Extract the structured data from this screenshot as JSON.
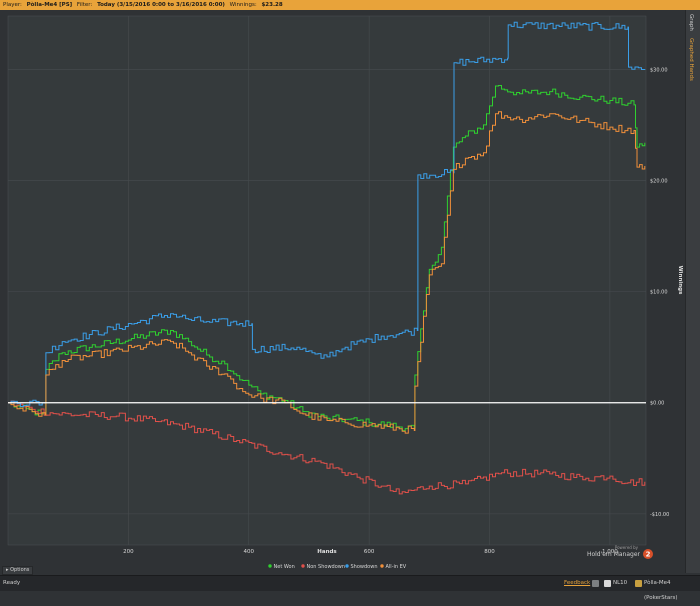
{
  "titlebar": {
    "player_label": "Player:",
    "player": "Pòlla-Me4 [PS]",
    "filter_label": "Filter:",
    "filter": "Today (3/15/2016 0:00 to 3/16/2016 0:00)",
    "winnings_label": "Winnings:",
    "winnings": "$23.28"
  },
  "sidebar": {
    "tab_graph": "Graph",
    "tab_graphed_hands": "Graphed Hands"
  },
  "options_label": "Options",
  "statusbar": {
    "ready": "Ready",
    "feedback": "Feedback",
    "stake": "NL10",
    "player_site": "Pòlla-Me4 (PokerStars)"
  },
  "brand": {
    "powered_by": "Powered by",
    "name": "Hold'em Manager",
    "badge": "2"
  },
  "colors": {
    "net_won": "#2fd02f",
    "non_showdown": "#e0504a",
    "showdown": "#3a9ee8",
    "allin_ev": "#f08f3a",
    "zero_line": "#ffffff",
    "accent": "#e8a33a"
  },
  "chart_data": {
    "type": "line",
    "xlabel": "Hands",
    "ylabel": "Winnings",
    "xlim": [
      0,
      1060
    ],
    "ylim": [
      -12.8,
      34.8
    ],
    "x_ticks": [
      200,
      400,
      600,
      800,
      1000
    ],
    "x_tick_labels": [
      "200",
      "400",
      "600",
      "800",
      "1,000"
    ],
    "y_ticks": [
      -10,
      0,
      10,
      20,
      30
    ],
    "y_tick_labels": [
      "-$10.00",
      "$0.00",
      "$10.00",
      "$20.00",
      "$30.00"
    ],
    "grid": true,
    "legend_position": "bottom-center",
    "series": [
      {
        "name": "Net Won",
        "color": "#2fd02f",
        "points": [
          [
            0,
            0
          ],
          [
            20,
            -0.5
          ],
          [
            40,
            -0.8
          ],
          [
            55,
            -1
          ],
          [
            62,
            -1.1
          ],
          [
            63,
            3
          ],
          [
            90,
            4.5
          ],
          [
            270,
            6.5
          ],
          [
            300,
            5.5
          ],
          [
            330,
            4.3
          ],
          [
            360,
            3.5
          ],
          [
            390,
            2
          ],
          [
            420,
            0.8
          ],
          [
            460,
            0.2
          ],
          [
            490,
            -0.8
          ],
          [
            530,
            -1.4
          ],
          [
            560,
            -1.5
          ],
          [
            600,
            -1.8
          ],
          [
            675,
            -2.3
          ],
          [
            676,
            2.5
          ],
          [
            700,
            12
          ],
          [
            720,
            14
          ],
          [
            740,
            23
          ],
          [
            760,
            24
          ],
          [
            790,
            25
          ],
          [
            810,
            28.5
          ],
          [
            850,
            27.8
          ],
          [
            900,
            28
          ],
          [
            950,
            27.5
          ],
          [
            1000,
            27.2
          ],
          [
            1040,
            26.8
          ],
          [
            1045,
            23
          ],
          [
            1058,
            23.4
          ]
        ]
      },
      {
        "name": "Non Showdown",
        "color": "#e0504a",
        "points": [
          [
            0,
            0
          ],
          [
            40,
            -0.6
          ],
          [
            80,
            -1
          ],
          [
            120,
            -1.1
          ],
          [
            180,
            -1.2
          ],
          [
            250,
            -1.7
          ],
          [
            300,
            -2.2
          ],
          [
            380,
            -3.4
          ],
          [
            450,
            -4.5
          ],
          [
            520,
            -5.4
          ],
          [
            580,
            -6.7
          ],
          [
            620,
            -7.5
          ],
          [
            650,
            -8.2
          ],
          [
            700,
            -7.5
          ],
          [
            760,
            -7.3
          ],
          [
            820,
            -6.3
          ],
          [
            900,
            -6.4
          ],
          [
            960,
            -6.8
          ],
          [
            1000,
            -6.6
          ],
          [
            1030,
            -7.2
          ],
          [
            1058,
            -7.1
          ]
        ]
      },
      {
        "name": "Showdown",
        "color": "#3a9ee8",
        "points": [
          [
            0,
            0
          ],
          [
            62,
            0
          ],
          [
            63,
            4.5
          ],
          [
            90,
            5.5
          ],
          [
            270,
            8
          ],
          [
            300,
            7.5
          ],
          [
            330,
            7.3
          ],
          [
            405,
            7.1
          ],
          [
            406,
            4.8
          ],
          [
            480,
            5
          ],
          [
            520,
            4
          ],
          [
            560,
            5
          ],
          [
            620,
            6
          ],
          [
            680,
            6.5
          ],
          [
            681,
            20.5
          ],
          [
            740,
            20.7
          ],
          [
            741,
            30.6
          ],
          [
            830,
            31
          ],
          [
            831,
            34
          ],
          [
            1030,
            33.8
          ],
          [
            1031,
            30.2
          ],
          [
            1058,
            30
          ]
        ]
      },
      {
        "name": "All-in EV",
        "color": "#f08f3a",
        "points": [
          [
            0,
            0
          ],
          [
            20,
            -0.5
          ],
          [
            40,
            -0.8
          ],
          [
            62,
            -1.1
          ],
          [
            63,
            2.5
          ],
          [
            90,
            3.8
          ],
          [
            270,
            5.5
          ],
          [
            300,
            4.5
          ],
          [
            330,
            3.3
          ],
          [
            360,
            2.6
          ],
          [
            390,
            1
          ],
          [
            420,
            0.4
          ],
          [
            460,
            0
          ],
          [
            490,
            -1
          ],
          [
            530,
            -1.6
          ],
          [
            560,
            -1.8
          ],
          [
            600,
            -2
          ],
          [
            675,
            -2.5
          ],
          [
            676,
            1.5
          ],
          [
            700,
            11.5
          ],
          [
            720,
            12.5
          ],
          [
            740,
            21
          ],
          [
            760,
            22
          ],
          [
            790,
            22.5
          ],
          [
            810,
            26
          ],
          [
            850,
            25.5
          ],
          [
            900,
            26
          ],
          [
            950,
            25.4
          ],
          [
            1000,
            24.8
          ],
          [
            1040,
            24.5
          ],
          [
            1045,
            21.2
          ],
          [
            1058,
            21.3
          ]
        ]
      }
    ]
  }
}
